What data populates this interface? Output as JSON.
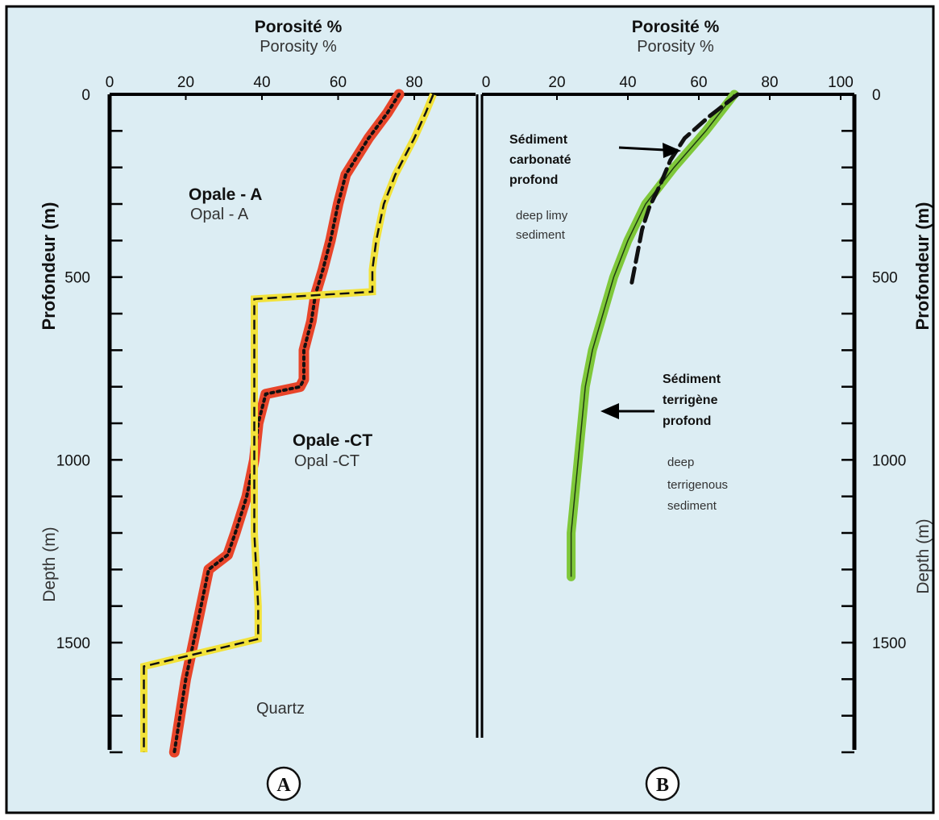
{
  "chart_data": [
    {
      "panel": "A",
      "type": "line",
      "title": "Porosité %",
      "subtitle": "Porosity %",
      "ylabel_fr": "Profondeur (m)",
      "ylabel_en": "Depth (m)",
      "xlim": [
        0,
        90
      ],
      "xticks": [
        0,
        20,
        40,
        60,
        80
      ],
      "ylim": [
        1800,
        0
      ],
      "yticks": [
        0,
        500,
        1000,
        1500
      ],
      "grid": false,
      "series": [
        {
          "style": "red dotted",
          "color": "#e8452a",
          "x": [
            76,
            73,
            68,
            62,
            60,
            58,
            56,
            54,
            53,
            51,
            51,
            50,
            41,
            39,
            38,
            36,
            33,
            31,
            26,
            24,
            20,
            17
          ],
          "y": [
            0,
            50,
            120,
            220,
            300,
            400,
            480,
            550,
            620,
            700,
            780,
            800,
            820,
            900,
            1000,
            1100,
            1200,
            1260,
            1300,
            1400,
            1600,
            1800
          ]
        },
        {
          "style": "yellow dashed",
          "color": "#f2e23a",
          "x": [
            85,
            83,
            80,
            75,
            72,
            70,
            69,
            69,
            38,
            38,
            38,
            38,
            39,
            39,
            9,
            9
          ],
          "y": [
            0,
            50,
            120,
            220,
            300,
            400,
            480,
            540,
            560,
            800,
            1000,
            1200,
            1400,
            1490,
            1565,
            1800
          ]
        }
      ],
      "annotations": {
        "opale_a_fr": "Opale - A",
        "opale_a_en": "Opal - A",
        "opale_ct_fr": "Opale -CT",
        "opale_ct_en": "Opal -CT",
        "quartz": "Quartz"
      },
      "panel_label": "A"
    },
    {
      "panel": "B",
      "type": "line",
      "title": "Porosité %",
      "subtitle": "Porosity %",
      "ylabel_fr": "Profondeur (m)",
      "ylabel_en": "Depth (m)",
      "xlim": [
        0,
        100
      ],
      "xticks": [
        0,
        20,
        40,
        60,
        80,
        100
      ],
      "ylim": [
        1800,
        0
      ],
      "yticks": [
        0,
        500,
        1000,
        1500
      ],
      "grid": false,
      "series": [
        {
          "style": "green solid",
          "color": "#7fc83a",
          "x": [
            70,
            62,
            53,
            45,
            40,
            36,
            33,
            30,
            28,
            27,
            26,
            25,
            24,
            24
          ],
          "y": [
            0,
            100,
            200,
            300,
            400,
            500,
            600,
            700,
            800,
            900,
            1000,
            1100,
            1200,
            1320
          ]
        },
        {
          "style": "black dashed",
          "color": "#111111",
          "x": [
            71,
            63,
            56,
            52,
            49,
            46,
            44,
            43,
            42,
            41
          ],
          "y": [
            0,
            60,
            120,
            180,
            250,
            310,
            370,
            420,
            470,
            520
          ]
        }
      ],
      "annotations": {
        "carbonate_fr_1": "Sédiment",
        "carbonate_fr_2": "carbonaté",
        "carbonate_fr_3": "profond",
        "carbonate_en_1": "deep limy",
        "carbonate_en_2": "sediment",
        "terrigene_fr_1": "Sédiment",
        "terrigene_fr_2": "terrigène",
        "terrigene_fr_3": "profond",
        "terrigene_en_1": "deep",
        "terrigene_en_2": "terrigenous",
        "terrigene_en_3": "sediment"
      },
      "panel_label": "B"
    }
  ]
}
